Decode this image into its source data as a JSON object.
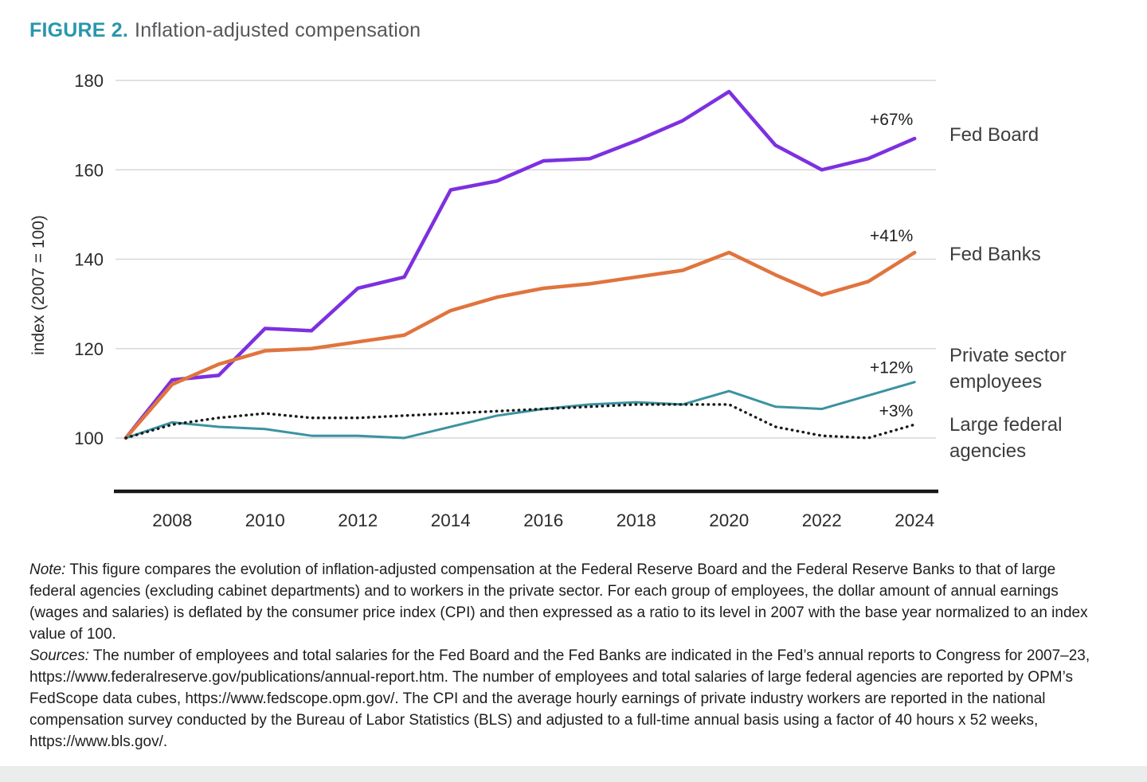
{
  "header": {
    "figure_label": "FIGURE 2.",
    "title": "Inflation-adjusted compensation"
  },
  "colors": {
    "figure_label_teal": "#2a96ad",
    "title_gray": "#55575b",
    "grid": "#d7d7d7",
    "axis": "#17171a",
    "text": "#2b2b2b"
  },
  "chart_data": {
    "type": "line",
    "title": "FIGURE 2. Inflation-adjusted compensation",
    "xlabel": "",
    "ylabel": "index (2007 = 100)",
    "x": [
      2007,
      2008,
      2009,
      2010,
      2011,
      2012,
      2013,
      2014,
      2015,
      2016,
      2017,
      2018,
      2019,
      2020,
      2021,
      2022,
      2023,
      2024
    ],
    "x_ticks": [
      2008,
      2010,
      2012,
      2014,
      2016,
      2018,
      2020,
      2022,
      2024
    ],
    "y_ticks": [
      100,
      120,
      140,
      160,
      180
    ],
    "ylim": [
      88,
      183
    ],
    "xlim": [
      2007,
      2024.5
    ],
    "grid": "horizontal",
    "legend_position": "right",
    "series": [
      {
        "name": "Fed Board",
        "color": "#7d30e0",
        "style": "solid",
        "width": 4.5,
        "annotation": "+67%",
        "annotation_at": [
          2023.5,
          170
        ],
        "values": [
          100,
          113,
          114,
          124.5,
          124,
          133.5,
          136,
          155.5,
          157.5,
          162,
          162.5,
          166.5,
          171,
          177.5,
          165.5,
          160,
          162.5,
          167
        ]
      },
      {
        "name": "Fed Banks",
        "color": "#e0743e",
        "style": "solid",
        "width": 4.5,
        "annotation": "+41%",
        "annotation_at": [
          2023.5,
          144
        ],
        "values": [
          100,
          112,
          116.5,
          119.5,
          120,
          121.5,
          123,
          128.5,
          131.5,
          133.5,
          134.5,
          136,
          137.5,
          141.5,
          136.5,
          132,
          135,
          141.5
        ]
      },
      {
        "name": "Private sector employees",
        "color": "#3a93a0",
        "style": "solid",
        "width": 3,
        "annotation": "+12%",
        "annotation_at": [
          2023.5,
          114.5
        ],
        "values": [
          100,
          103.5,
          102.5,
          102,
          100.5,
          100.5,
          100,
          102.5,
          105,
          106.5,
          107.5,
          108,
          107.5,
          110.5,
          107,
          106.5,
          109.5,
          112.5
        ]
      },
      {
        "name": "Large federal agencies",
        "color": "#1a1a1a",
        "style": "dotted",
        "width": 3.4,
        "annotation": "+3%",
        "annotation_at": [
          2023.6,
          104.8
        ],
        "values": [
          100,
          103,
          104.5,
          105.5,
          104.5,
          104.5,
          105,
          105.5,
          106,
          106.5,
          107,
          107.5,
          107.5,
          107.5,
          102.5,
          100.5,
          100,
          103
        ]
      }
    ]
  },
  "notes": {
    "note_label": "Note:",
    "note_text": " This figure compares the evolution of inflation-adjusted compensation at the Federal Reserve Board and the Federal Reserve Banks to that of large federal agencies (excluding cabinet departments) and to workers in the private sector. For each group of employees, the dollar amount of annual earnings (wages and salaries) is deflated by the consumer price index (CPI) and then expressed as a ratio to its level in 2007 with the base year normalized to an index value of 100.",
    "sources_label": "Sources:",
    "sources_text": " The number of employees and total salaries for the Fed Board and the Fed Banks are indicated in the Fed’s annual reports to Congress for 2007–23,  https://www.federalreserve.gov/publications/annual-report.htm. The number of employees and total salaries of large federal agencies are reported by OPM’s FedScope data cubes, https://www.fedscope.opm.gov/. The CPI and the average hourly earnings of private industry workers are reported in the national compensation survey conducted by the Bureau of Labor Statistics (BLS) and adjusted to a full-time annual basis using a factor of 40 hours x 52 weeks, https://www.bls.gov/."
  }
}
